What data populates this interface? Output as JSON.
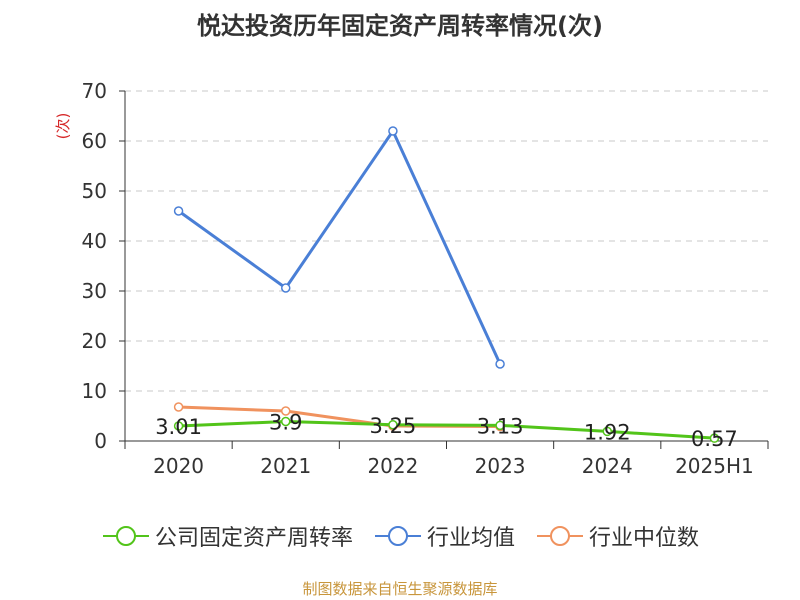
{
  "chart_data": {
    "type": "line",
    "title": "悦达投资历年固定资产周转率情况(次)",
    "ylabel": "(次)",
    "xlabel": "",
    "categories": [
      "2020",
      "2021",
      "2022",
      "2023",
      "2024",
      "2025H1"
    ],
    "ylim": [
      0,
      70
    ],
    "yticks": [
      0,
      10,
      20,
      30,
      40,
      50,
      60,
      70
    ],
    "grid": true,
    "legend_position": "bottom",
    "series": [
      {
        "name": "公司固定资产周转率",
        "color": "#52c41a",
        "values": [
          3.01,
          3.9,
          3.25,
          3.13,
          1.92,
          0.57
        ],
        "labels": [
          "3.01",
          "3.9",
          "3.25",
          "3.13",
          "1.92",
          "0.57"
        ]
      },
      {
        "name": "行业均值",
        "color": "#4a7fd6",
        "values": [
          46,
          30.6,
          62,
          15.4,
          null,
          null
        ]
      },
      {
        "name": "行业中位数",
        "color": "#f0925e",
        "values": [
          6.8,
          6.0,
          3.0,
          2.9,
          null,
          null
        ]
      }
    ]
  },
  "source_text": "制图数据来自恒生聚源数据库"
}
